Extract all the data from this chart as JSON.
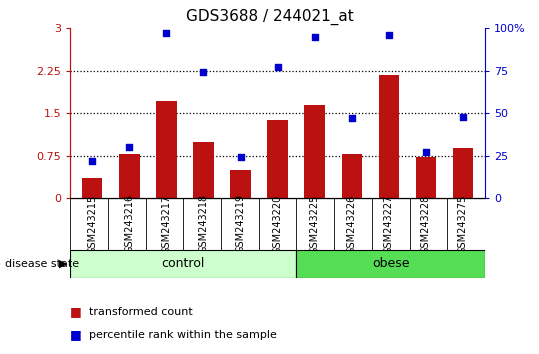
{
  "title": "GDS3688 / 244021_at",
  "samples": [
    "GSM243215",
    "GSM243216",
    "GSM243217",
    "GSM243218",
    "GSM243219",
    "GSM243220",
    "GSM243225",
    "GSM243226",
    "GSM243227",
    "GSM243228",
    "GSM243275"
  ],
  "bar_values": [
    0.35,
    0.78,
    1.72,
    1.0,
    0.5,
    1.38,
    1.65,
    0.78,
    2.18,
    0.72,
    0.88
  ],
  "dot_values_pct": [
    22,
    30,
    97,
    74,
    24,
    77,
    95,
    47,
    96,
    27,
    48
  ],
  "bar_color": "#BB1111",
  "dot_color": "#0000CC",
  "ylim_left": [
    0,
    3.0
  ],
  "ylim_right": [
    0,
    100
  ],
  "yticks_left": [
    0,
    0.75,
    1.5,
    2.25,
    3.0
  ],
  "ytick_labels_left": [
    "0",
    "0.75",
    "1.5",
    "2.25",
    "3"
  ],
  "yticks_right": [
    0,
    25,
    50,
    75,
    100
  ],
  "ytick_labels_right": [
    "0",
    "25",
    "50",
    "75",
    "100%"
  ],
  "control_count": 6,
  "obese_count": 5,
  "control_label": "control",
  "obese_label": "obese",
  "disease_state_label": "disease state",
  "legend_bar_label": "transformed count",
  "legend_dot_label": "percentile rank within the sample",
  "background_color": "#ffffff",
  "plot_bg_color": "#ffffff",
  "label_bg_color": "#d8d8d8",
  "control_bg": "#ccffcc",
  "obese_bg": "#55dd55",
  "figsize": [
    5.39,
    3.54
  ],
  "dpi": 100
}
